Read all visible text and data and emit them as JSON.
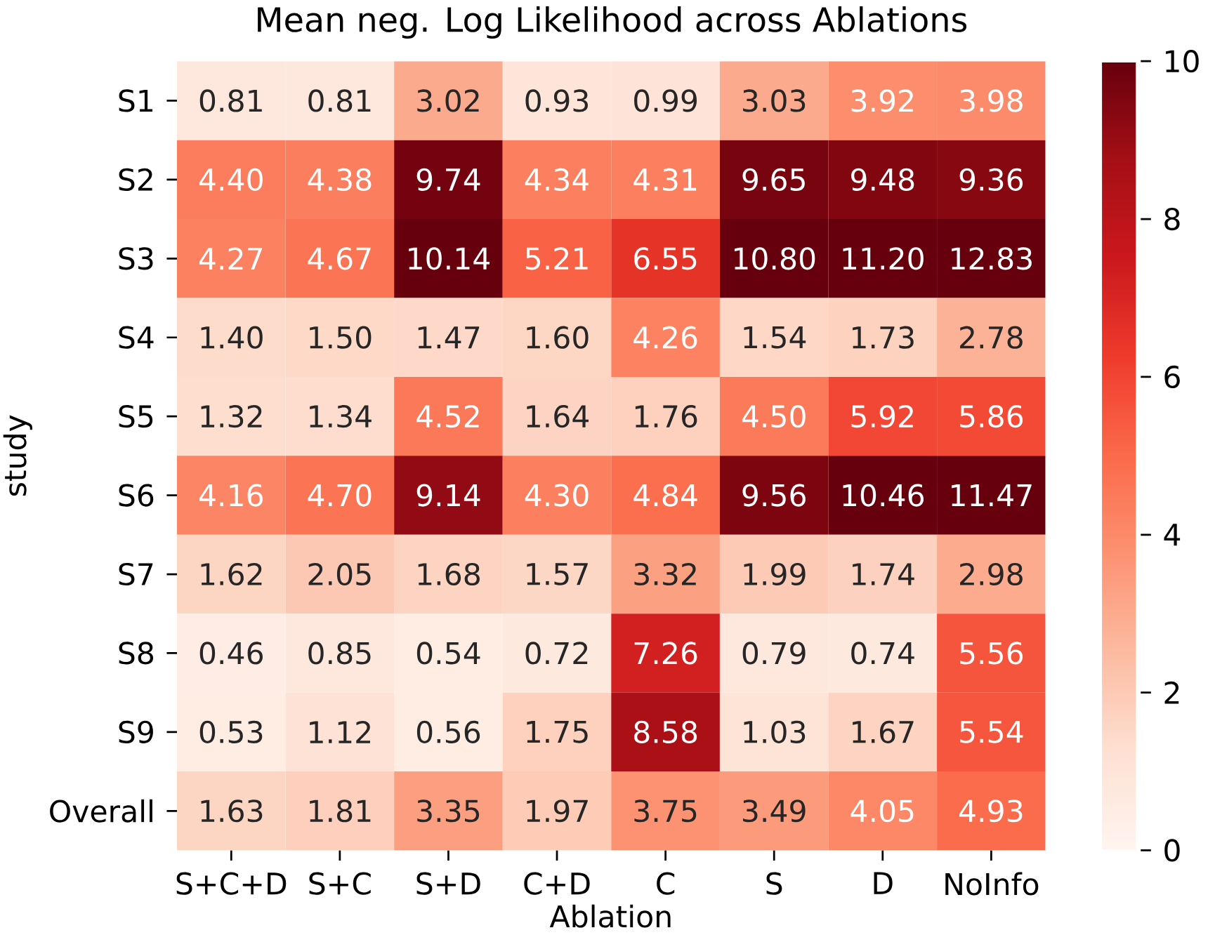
{
  "chart_data": {
    "type": "heatmap",
    "title": "Mean neg. Log Likelihood across Ablations",
    "xlabel": "Ablation",
    "ylabel": "study",
    "categories": [
      "S+C+D",
      "S+C",
      "S+D",
      "C+D",
      "C",
      "S",
      "D",
      "NoInfo"
    ],
    "y_categories": [
      "S1",
      "S2",
      "S3",
      "S4",
      "S5",
      "S6",
      "S7",
      "S8",
      "S9",
      "Overall"
    ],
    "cells": [
      [
        0.81,
        0.81,
        3.02,
        0.93,
        0.99,
        3.03,
        3.92,
        3.98
      ],
      [
        4.4,
        4.38,
        9.74,
        4.34,
        4.31,
        9.65,
        9.48,
        9.36
      ],
      [
        4.27,
        4.67,
        10.14,
        5.21,
        6.55,
        10.8,
        11.2,
        12.83
      ],
      [
        1.4,
        1.5,
        1.47,
        1.6,
        4.26,
        1.54,
        1.73,
        2.78
      ],
      [
        1.32,
        1.34,
        4.52,
        1.64,
        1.76,
        4.5,
        5.92,
        5.86
      ],
      [
        4.16,
        4.7,
        9.14,
        4.3,
        4.84,
        9.56,
        10.46,
        11.47
      ],
      [
        1.62,
        2.05,
        1.68,
        1.57,
        3.32,
        1.99,
        1.74,
        2.98
      ],
      [
        0.46,
        0.85,
        0.54,
        0.72,
        7.26,
        0.79,
        0.74,
        5.56
      ],
      [
        0.53,
        1.12,
        0.56,
        1.75,
        8.58,
        1.03,
        1.67,
        5.54
      ],
      [
        1.63,
        1.81,
        3.35,
        1.97,
        3.75,
        3.49,
        4.05,
        4.93
      ]
    ],
    "cell_labels": [
      [
        "0.81",
        "0.81",
        "3.02",
        "0.93",
        "0.99",
        "3.03",
        "3.92",
        "3.98"
      ],
      [
        "4.40",
        "4.38",
        "9.74",
        "4.34",
        "4.31",
        "9.65",
        "9.48",
        "9.36"
      ],
      [
        "4.27",
        "4.67",
        "10.14",
        "5.21",
        "6.55",
        "10.80",
        "11.20",
        "12.83"
      ],
      [
        "1.40",
        "1.50",
        "1.47",
        "1.60",
        "4.26",
        "1.54",
        "1.73",
        "2.78"
      ],
      [
        "1.32",
        "1.34",
        "4.52",
        "1.64",
        "1.76",
        "4.50",
        "5.92",
        "5.86"
      ],
      [
        "4.16",
        "4.70",
        "9.14",
        "4.30",
        "4.84",
        "9.56",
        "10.46",
        "11.47"
      ],
      [
        "1.62",
        "2.05",
        "1.68",
        "1.57",
        "3.32",
        "1.99",
        "1.74",
        "2.98"
      ],
      [
        "0.46",
        "0.85",
        "0.54",
        "0.72",
        "7.26",
        "0.79",
        "0.74",
        "5.56"
      ],
      [
        "0.53",
        "1.12",
        "0.56",
        "1.75",
        "8.58",
        "1.03",
        "1.67",
        "5.54"
      ],
      [
        "1.63",
        "1.81",
        "3.35",
        "1.97",
        "3.75",
        "3.49",
        "4.05",
        "4.93"
      ]
    ],
    "clim": [
      0,
      10
    ],
    "cticks": [
      0,
      2,
      4,
      6,
      8,
      10
    ]
  }
}
